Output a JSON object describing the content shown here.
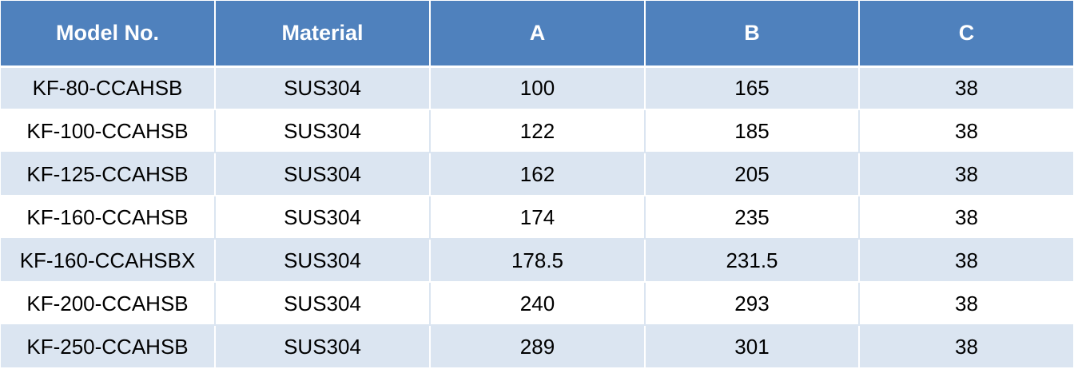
{
  "colors": {
    "header_bg": "#4f81bd",
    "header_text": "#ffffff",
    "band_bg": "#dbe5f1",
    "plain_bg": "#ffffff"
  },
  "table": {
    "headers": [
      "Model No.",
      "Material",
      "A",
      "B",
      "C"
    ],
    "rows": [
      [
        "KF-80-CCAHSB",
        "SUS304",
        "100",
        "165",
        "38"
      ],
      [
        "KF-100-CCAHSB",
        "SUS304",
        "122",
        "185",
        "38"
      ],
      [
        "KF-125-CCAHSB",
        "SUS304",
        "162",
        "205",
        "38"
      ],
      [
        "KF-160-CCAHSB",
        "SUS304",
        "174",
        "235",
        "38"
      ],
      [
        "KF-160-CCAHSBX",
        "SUS304",
        "178.5",
        "231.5",
        "38"
      ],
      [
        "KF-200-CCAHSB",
        "SUS304",
        "240",
        "293",
        "38"
      ],
      [
        "KF-250-CCAHSB",
        "SUS304",
        "289",
        "301",
        "38"
      ]
    ]
  }
}
